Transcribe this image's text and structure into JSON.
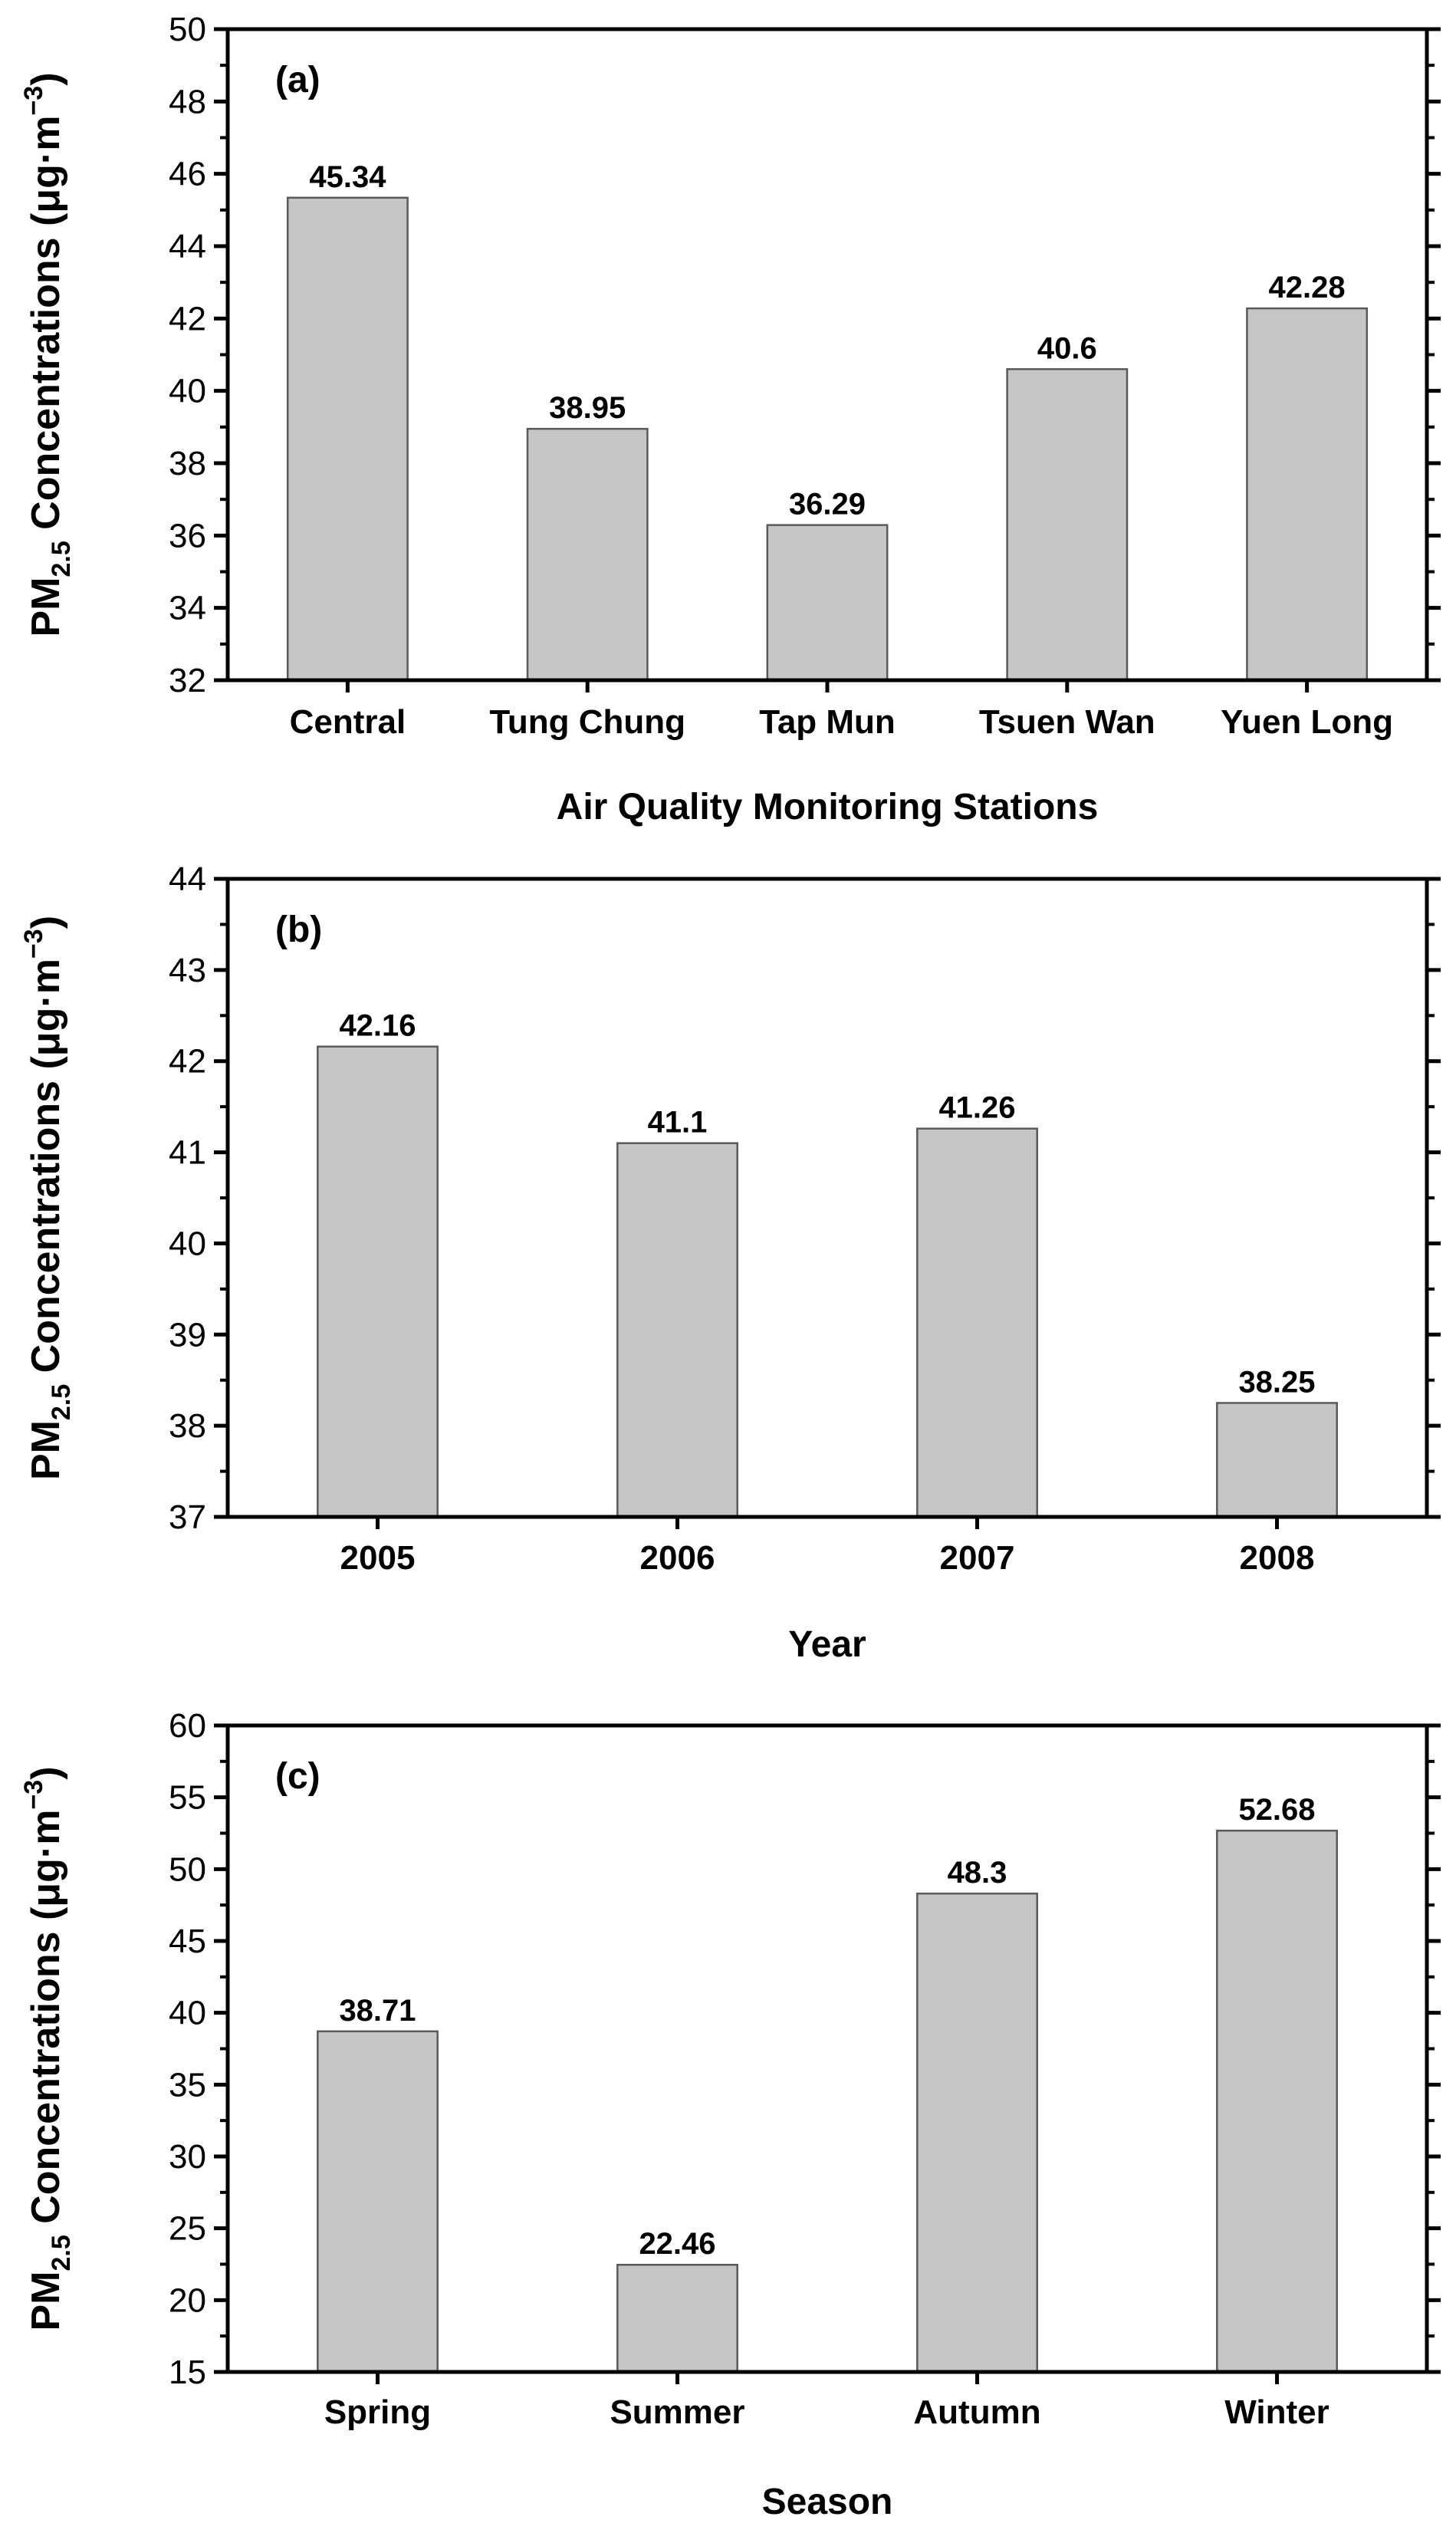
{
  "figure": {
    "ylabel_main": "PM",
    "ylabel_sub": "2.5",
    "ylabel_rest": " Concentrations (μg·m",
    "ylabel_sup": "−3",
    "ylabel_close": ")"
  },
  "chart_data": [
    {
      "type": "bar",
      "panel_label": "(a)",
      "title": "",
      "xlabel": "Air Quality Monitoring Stations",
      "ylabel": "PM2.5 Concentrations (μg·m−3)",
      "categories": [
        "Central",
        "Tung Chung",
        "Tap Mun",
        "Tsuen Wan",
        "Yuen Long"
      ],
      "values": [
        45.34,
        38.95,
        36.29,
        40.6,
        42.28
      ],
      "value_labels": [
        "45.34",
        "38.95",
        "36.29",
        "40.6",
        "42.28"
      ],
      "ylim": [
        32,
        50
      ],
      "yticks": [
        32,
        34,
        36,
        38,
        40,
        42,
        44,
        46,
        48,
        50
      ],
      "grid": false,
      "bar_color": "#c6c6c6",
      "bar_edge": "#5a5a5a"
    },
    {
      "type": "bar",
      "panel_label": "(b)",
      "title": "",
      "xlabel": "Year",
      "ylabel": "PM2.5 Concentrations (μg·m−3)",
      "categories": [
        "2005",
        "2006",
        "2007",
        "2008"
      ],
      "values": [
        42.16,
        41.1,
        41.26,
        38.25
      ],
      "value_labels": [
        "42.16",
        "41.1",
        "41.26",
        "38.25"
      ],
      "ylim": [
        37,
        44
      ],
      "yticks": [
        37,
        38,
        39,
        40,
        41,
        42,
        43,
        44
      ],
      "grid": false,
      "bar_color": "#c6c6c6",
      "bar_edge": "#5a5a5a"
    },
    {
      "type": "bar",
      "panel_label": "(c)",
      "title": "",
      "xlabel": "Season",
      "ylabel": "PM2.5 Concentrations (μg·m−3)",
      "categories": [
        "Spring",
        "Summer",
        "Autumn",
        "Winter"
      ],
      "values": [
        38.71,
        22.46,
        48.3,
        52.68
      ],
      "value_labels": [
        "38.71",
        "22.46",
        "48.3",
        "52.68"
      ],
      "ylim": [
        15,
        60
      ],
      "yticks": [
        15,
        20,
        25,
        30,
        35,
        40,
        45,
        50,
        55,
        60
      ],
      "grid": false,
      "bar_color": "#c6c6c6",
      "bar_edge": "#5a5a5a"
    }
  ]
}
